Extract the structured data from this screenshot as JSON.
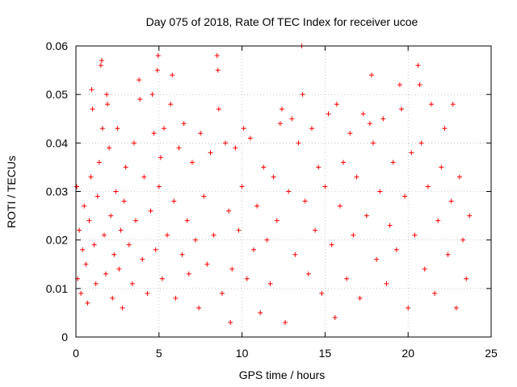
{
  "chart_data": {
    "type": "scatter",
    "title": "Day 075 of 2018, Rate Of TEC Index for receiver ucoe",
    "xlabel": "GPS time / hours",
    "ylabel": "ROTI / TECUs",
    "xlim": [
      0,
      25
    ],
    "ylim": [
      0,
      0.06
    ],
    "xticks": [
      "0",
      "5",
      "10",
      "15",
      "20",
      "25"
    ],
    "yticks": [
      "0",
      "0.01",
      "0.02",
      "0.03",
      "0.04",
      "0.05",
      "0.06"
    ],
    "grid": true,
    "marker": "plus",
    "color": "#ff0000",
    "series": [
      {
        "values": [
          [
            0.05,
            0.031
          ],
          [
            0.1,
            0.012
          ],
          [
            0.2,
            0.022
          ],
          [
            0.3,
            0.009
          ],
          [
            0.4,
            0.018
          ],
          [
            0.5,
            0.027
          ],
          [
            0.6,
            0.015
          ],
          [
            0.7,
            0.007
          ],
          [
            0.8,
            0.024
          ],
          [
            0.9,
            0.033
          ],
          [
            0.95,
            0.051
          ],
          [
            1.0,
            0.047
          ],
          [
            1.1,
            0.019
          ],
          [
            1.2,
            0.011
          ],
          [
            1.3,
            0.029
          ],
          [
            1.4,
            0.036
          ],
          [
            1.5,
            0.056
          ],
          [
            1.55,
            0.057
          ],
          [
            1.6,
            0.043
          ],
          [
            1.7,
            0.021
          ],
          [
            1.8,
            0.013
          ],
          [
            1.85,
            0.05
          ],
          [
            1.9,
            0.048
          ],
          [
            2.0,
            0.039
          ],
          [
            2.1,
            0.025
          ],
          [
            2.2,
            0.008
          ],
          [
            2.3,
            0.017
          ],
          [
            2.4,
            0.03
          ],
          [
            2.5,
            0.043
          ],
          [
            2.6,
            0.014
          ],
          [
            2.7,
            0.022
          ],
          [
            2.8,
            0.006
          ],
          [
            2.9,
            0.028
          ],
          [
            3.0,
            0.035
          ],
          [
            3.2,
            0.019
          ],
          [
            3.4,
            0.011
          ],
          [
            3.5,
            0.04
          ],
          [
            3.6,
            0.024
          ],
          [
            3.8,
            0.053
          ],
          [
            3.85,
            0.049
          ],
          [
            4.0,
            0.016
          ],
          [
            4.1,
            0.033
          ],
          [
            4.3,
            0.009
          ],
          [
            4.5,
            0.026
          ],
          [
            4.6,
            0.05
          ],
          [
            4.7,
            0.042
          ],
          [
            4.8,
            0.018
          ],
          [
            4.9,
            0.055
          ],
          [
            4.95,
            0.058
          ],
          [
            5.0,
            0.031
          ],
          [
            5.1,
            0.037
          ],
          [
            5.2,
            0.012
          ],
          [
            5.3,
            0.043
          ],
          [
            5.5,
            0.021
          ],
          [
            5.7,
            0.048
          ],
          [
            5.8,
            0.054
          ],
          [
            5.9,
            0.028
          ],
          [
            6.0,
            0.008
          ],
          [
            6.2,
            0.039
          ],
          [
            6.4,
            0.017
          ],
          [
            6.5,
            0.044
          ],
          [
            6.7,
            0.024
          ],
          [
            6.8,
            0.013
          ],
          [
            7.0,
            0.036
          ],
          [
            7.2,
            0.02
          ],
          [
            7.4,
            0.006
          ],
          [
            7.5,
            0.042
          ],
          [
            7.7,
            0.029
          ],
          [
            7.9,
            0.015
          ],
          [
            8.1,
            0.038
          ],
          [
            8.3,
            0.021
          ],
          [
            8.5,
            0.058
          ],
          [
            8.55,
            0.055
          ],
          [
            8.6,
            0.047
          ],
          [
            8.8,
            0.009
          ],
          [
            9.0,
            0.04
          ],
          [
            9.2,
            0.026
          ],
          [
            9.3,
            0.003
          ],
          [
            9.4,
            0.014
          ],
          [
            9.6,
            0.039
          ],
          [
            9.8,
            0.022
          ],
          [
            10.0,
            0.031
          ],
          [
            10.1,
            0.043
          ],
          [
            10.3,
            0.012
          ],
          [
            10.5,
            0.041
          ],
          [
            10.7,
            0.018
          ],
          [
            10.9,
            0.027
          ],
          [
            11.1,
            0.005
          ],
          [
            11.3,
            0.035
          ],
          [
            11.5,
            0.02
          ],
          [
            11.7,
            0.011
          ],
          [
            11.9,
            0.033
          ],
          [
            12.1,
            0.024
          ],
          [
            12.3,
            0.044
          ],
          [
            12.4,
            0.047
          ],
          [
            12.6,
            0.003
          ],
          [
            12.8,
            0.03
          ],
          [
            13.0,
            0.045
          ],
          [
            13.2,
            0.017
          ],
          [
            13.4,
            0.04
          ],
          [
            13.6,
            0.06
          ],
          [
            13.65,
            0.05
          ],
          [
            13.8,
            0.028
          ],
          [
            14.0,
            0.013
          ],
          [
            14.2,
            0.043
          ],
          [
            14.4,
            0.022
          ],
          [
            14.6,
            0.035
          ],
          [
            14.8,
            0.009
          ],
          [
            15.0,
            0.031
          ],
          [
            15.2,
            0.046
          ],
          [
            15.4,
            0.019
          ],
          [
            15.6,
            0.004
          ],
          [
            15.7,
            0.048
          ],
          [
            15.9,
            0.027
          ],
          [
            16.1,
            0.036
          ],
          [
            16.3,
            0.012
          ],
          [
            16.5,
            0.042
          ],
          [
            16.7,
            0.021
          ],
          [
            16.9,
            0.033
          ],
          [
            17.1,
            0.008
          ],
          [
            17.3,
            0.046
          ],
          [
            17.5,
            0.025
          ],
          [
            17.7,
            0.044
          ],
          [
            17.8,
            0.054
          ],
          [
            17.9,
            0.04
          ],
          [
            18.1,
            0.016
          ],
          [
            18.3,
            0.03
          ],
          [
            18.5,
            0.045
          ],
          [
            18.7,
            0.011
          ],
          [
            18.9,
            0.023
          ],
          [
            19.1,
            0.036
          ],
          [
            19.3,
            0.018
          ],
          [
            19.5,
            0.052
          ],
          [
            19.6,
            0.047
          ],
          [
            19.8,
            0.029
          ],
          [
            20.0,
            0.006
          ],
          [
            20.2,
            0.038
          ],
          [
            20.4,
            0.021
          ],
          [
            20.6,
            0.056
          ],
          [
            20.7,
            0.052
          ],
          [
            20.8,
            0.04
          ],
          [
            21.0,
            0.014
          ],
          [
            21.2,
            0.031
          ],
          [
            21.4,
            0.048
          ],
          [
            21.6,
            0.009
          ],
          [
            21.8,
            0.024
          ],
          [
            22.0,
            0.035
          ],
          [
            22.2,
            0.043
          ],
          [
            22.4,
            0.017
          ],
          [
            22.6,
            0.028
          ],
          [
            22.7,
            0.048
          ],
          [
            22.9,
            0.006
          ],
          [
            23.1,
            0.033
          ],
          [
            23.3,
            0.02
          ],
          [
            23.5,
            0.012
          ],
          [
            23.7,
            0.025
          ]
        ]
      }
    ]
  }
}
